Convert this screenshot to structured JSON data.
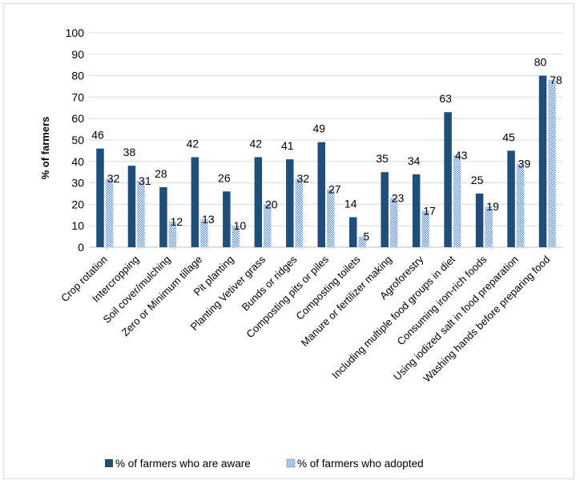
{
  "chart_data": {
    "type": "bar",
    "ylabel": "% of farmers",
    "ylim": [
      0,
      100
    ],
    "yticks": [
      0,
      10,
      20,
      30,
      40,
      50,
      60,
      70,
      80,
      90,
      100
    ],
    "grid": true,
    "legend_position": "bottom",
    "categories": [
      "Crop rotation",
      "Intercropping",
      "Soil cover/mulching",
      "Zero or Minimum tillage",
      "Pit planting",
      "Planting Vetiver grass",
      "Bunds or ridges",
      "Composting pits or piles",
      "Composting toilets",
      "Manure or fertilizer making",
      "Agroforestry",
      "Including multiple food groups in diet",
      "Consuming iron-rich foods",
      "Using iodized salt in food preparation",
      "Washing hands before preparing food"
    ],
    "series": [
      {
        "name": "% of farmers who are aware",
        "color": "#1f4e79",
        "pattern": "solid",
        "values": [
          46,
          38,
          28,
          42,
          26,
          42,
          41,
          49,
          14,
          35,
          34,
          63,
          25,
          45,
          80
        ]
      },
      {
        "name": "% of farmers who adopted",
        "color": "#5b8fd0",
        "pattern": "checkered",
        "values": [
          32,
          31,
          12,
          13,
          10,
          20,
          32,
          27,
          5,
          23,
          17,
          43,
          19,
          39,
          78
        ]
      }
    ]
  }
}
